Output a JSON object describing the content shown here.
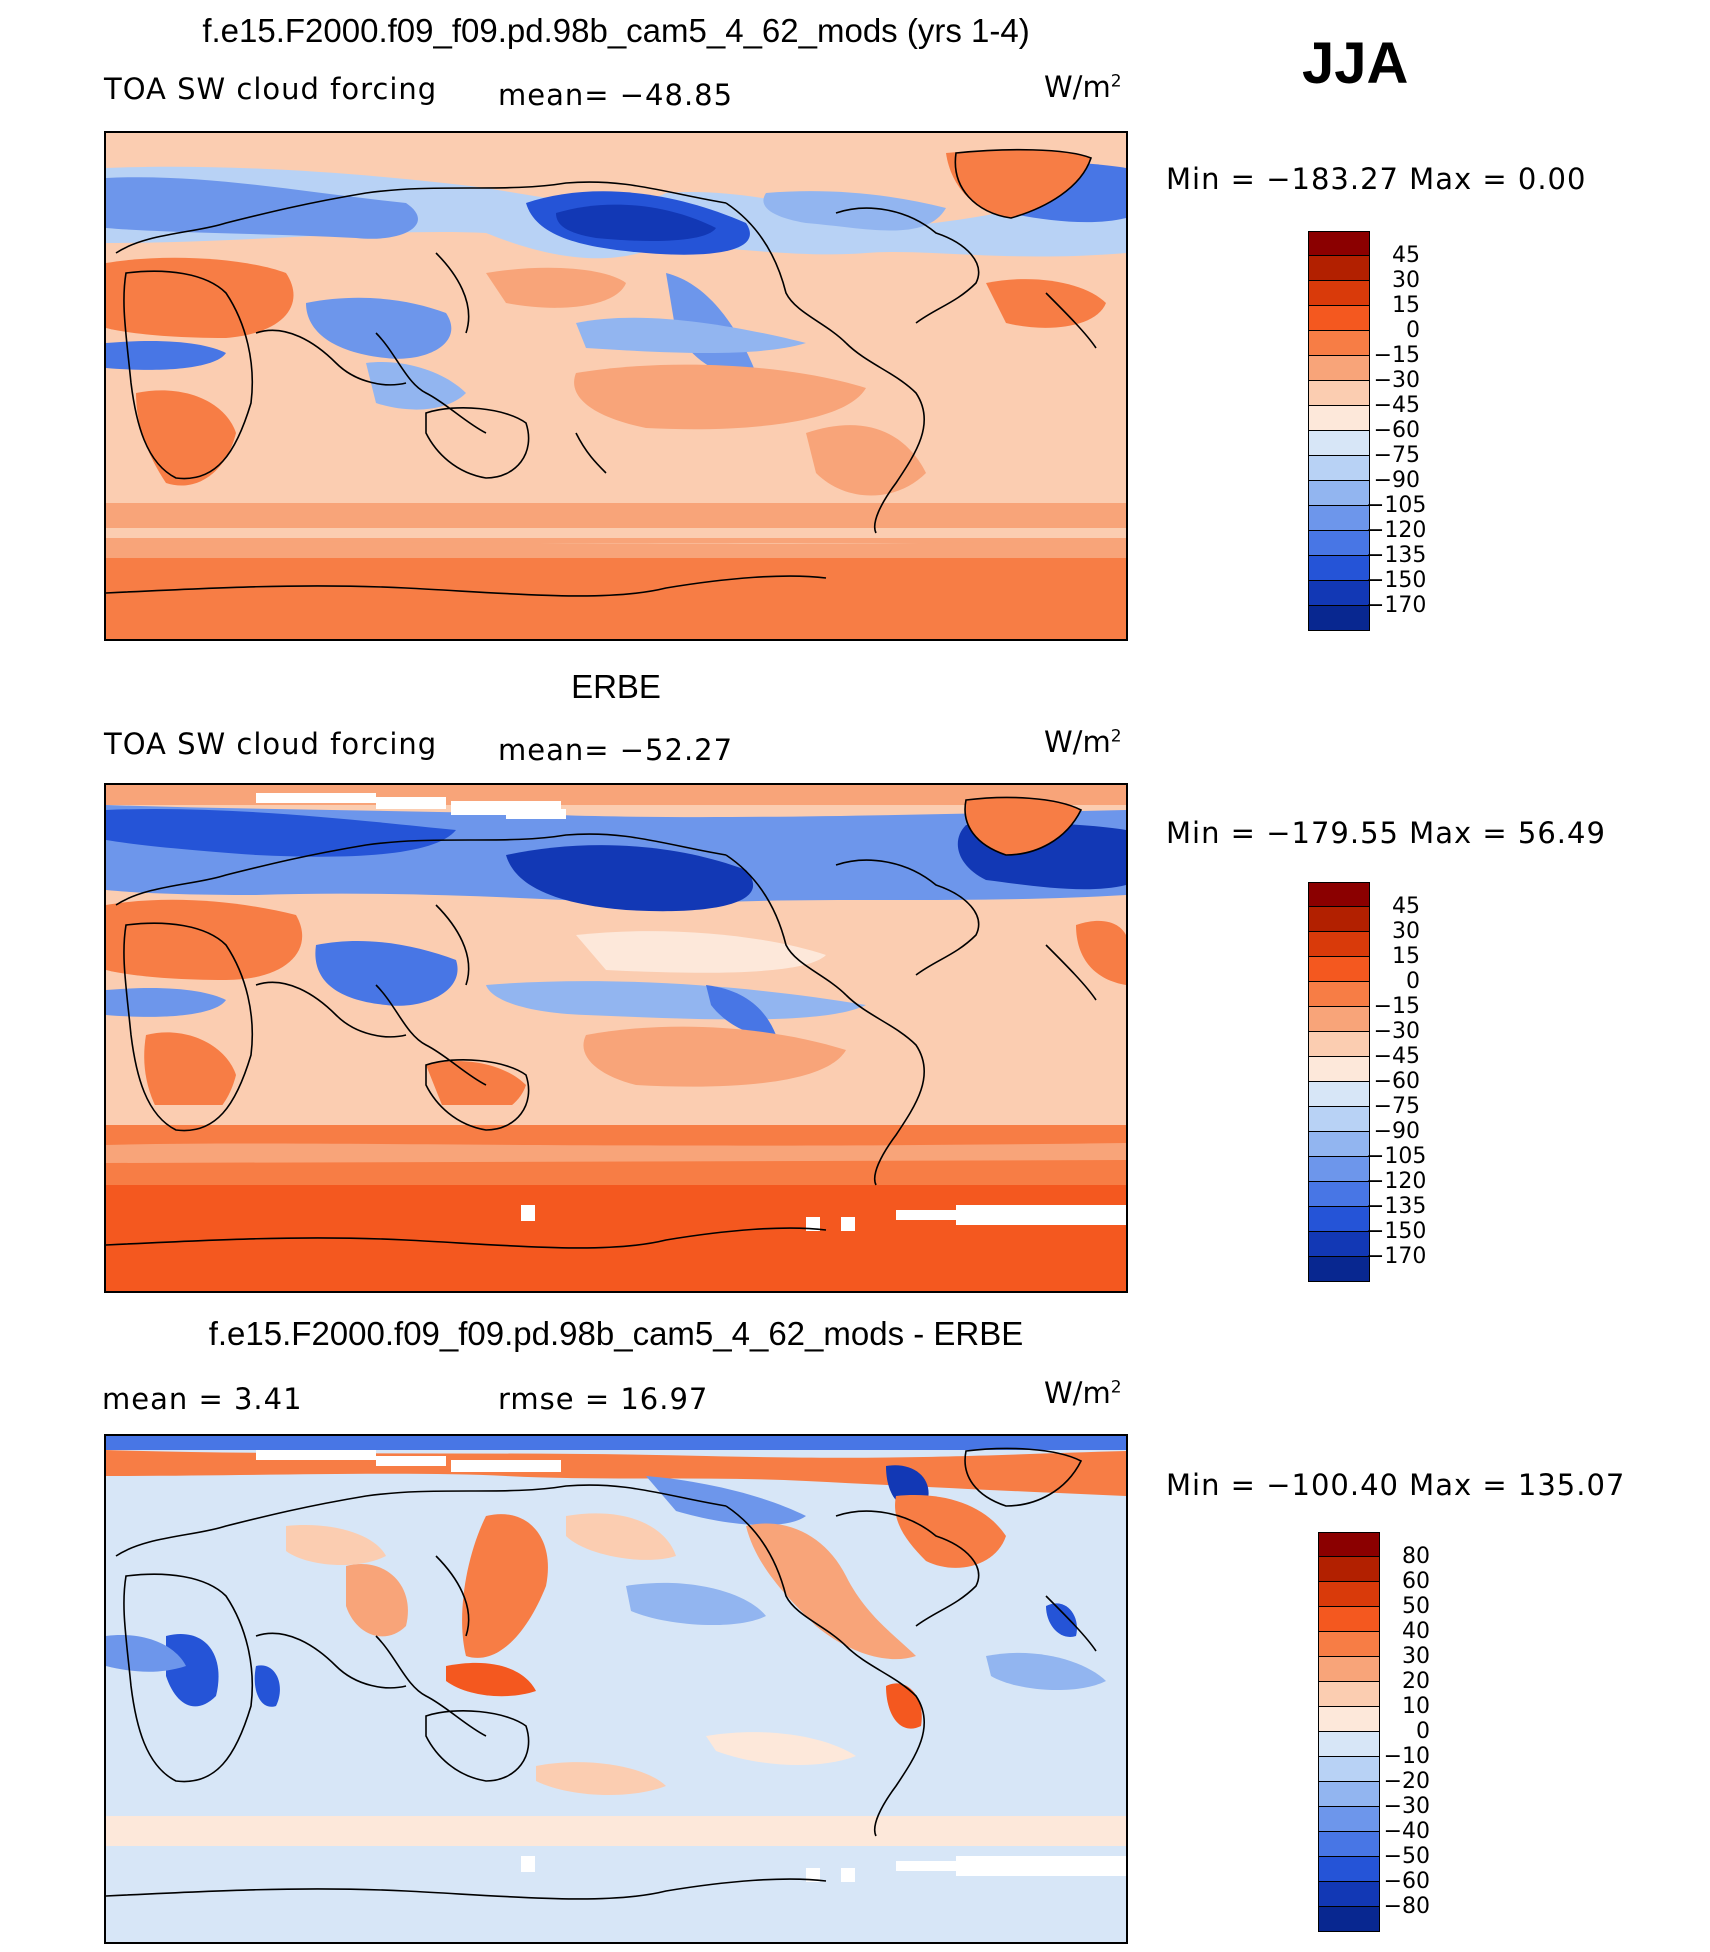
{
  "season": "JJA",
  "panels": [
    {
      "title": "f.e15.F2000.f09_f09.pd.98b_cam5_4_62_mods (yrs 1-4)",
      "left_label": "TOA SW cloud forcing",
      "center_label": "mean=  −48.85",
      "units_base": "W/m",
      "units_exp": "2",
      "minmax": "Min  =  −183.27  Max  =     0.00",
      "scale": "abs"
    },
    {
      "title": "ERBE",
      "left_label": "TOA SW cloud forcing",
      "center_label": "mean=  −52.27",
      "units_base": "W/m",
      "units_exp": "2",
      "minmax": "Min  =  −179.55  Max  =   56.49",
      "scale": "abs"
    },
    {
      "title": "f.e15.F2000.f09_f09.pd.98b_cam5_4_62_mods - ERBE",
      "left_label": "mean  =     3.41",
      "center_label": "rmse  =    16.97",
      "units_base": "W/m",
      "units_exp": "2",
      "minmax": "Min  =  −100.40  Max  =  135.07",
      "scale": "diff"
    }
  ],
  "colorbars": {
    "abs": {
      "colors": [
        "#8b0000",
        "#b22000",
        "#d93a0a",
        "#f4581f",
        "#f77d45",
        "#f8a479",
        "#fbcdb1",
        "#fde8da",
        "#d7e6f7",
        "#b8d2f5",
        "#92b5f0",
        "#6d96eb",
        "#4876e5",
        "#2554d7",
        "#1238b5",
        "#082790"
      ],
      "labels": [
        "45",
        "30",
        "15",
        "0",
        "−15",
        "−30",
        "−45",
        "−60",
        "−75",
        "−90",
        "−105",
        "−120",
        "−135",
        "−150",
        "−170"
      ]
    },
    "diff": {
      "colors": [
        "#8b0000",
        "#b22000",
        "#d93a0a",
        "#f4581f",
        "#f77d45",
        "#f8a479",
        "#fbcdb1",
        "#fde8da",
        "#d7e6f7",
        "#b8d2f5",
        "#92b5f0",
        "#6d96eb",
        "#4876e5",
        "#2554d7",
        "#1238b5",
        "#082790"
      ],
      "labels": [
        "80",
        "60",
        "50",
        "40",
        "30",
        "20",
        "10",
        "0",
        "−10",
        "−20",
        "−30",
        "−40",
        "−50",
        "−60",
        "−80"
      ]
    }
  }
}
